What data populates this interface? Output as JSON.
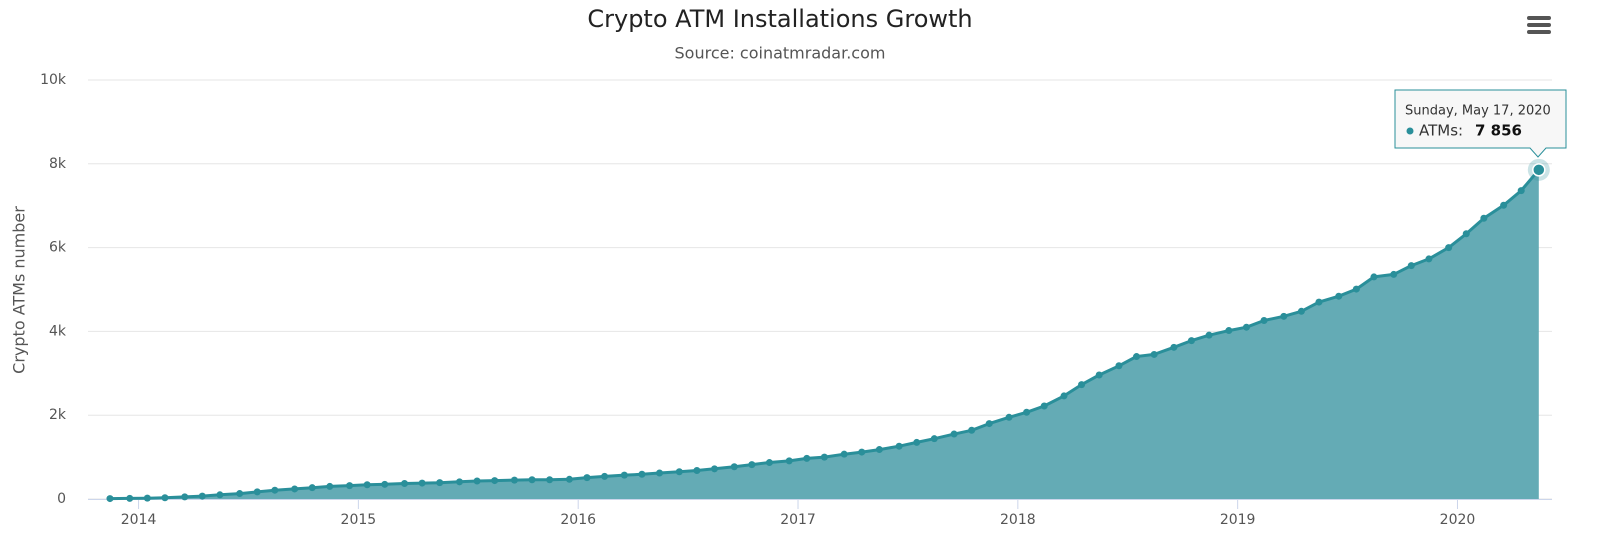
{
  "chart_data": {
    "type": "area",
    "title": "Crypto ATM Installations Growth",
    "subtitle": "Source: coinatmradar.com",
    "y_axis_title": "Crypto ATMs number",
    "color": "#2a8f9a",
    "fill": "#64abb5",
    "grid": true,
    "x": [
      2013.87,
      2013.96,
      2014.04,
      2014.12,
      2014.21,
      2014.29,
      2014.37,
      2014.46,
      2014.54,
      2014.62,
      2014.71,
      2014.79,
      2014.87,
      2014.96,
      2015.04,
      2015.12,
      2015.21,
      2015.29,
      2015.37,
      2015.46,
      2015.54,
      2015.62,
      2015.71,
      2015.79,
      2015.87,
      2015.96,
      2016.04,
      2016.12,
      2016.21,
      2016.29,
      2016.37,
      2016.46,
      2016.54,
      2016.62,
      2016.71,
      2016.79,
      2016.87,
      2016.96,
      2017.04,
      2017.12,
      2017.21,
      2017.29,
      2017.37,
      2017.46,
      2017.54,
      2017.62,
      2017.71,
      2017.79,
      2017.87,
      2017.96,
      2018.04,
      2018.12,
      2018.21,
      2018.29,
      2018.37,
      2018.46,
      2018.54,
      2018.62,
      2018.71,
      2018.79,
      2018.87,
      2018.96,
      2019.04,
      2019.12,
      2019.21,
      2019.29,
      2019.37,
      2019.46,
      2019.54,
      2019.62,
      2019.71,
      2019.79,
      2019.87,
      2019.96,
      2020.04,
      2020.12,
      2020.21,
      2020.29,
      2020.37
    ],
    "values": [
      10,
      15,
      20,
      30,
      50,
      70,
      100,
      130,
      170,
      210,
      240,
      270,
      300,
      320,
      340,
      350,
      370,
      380,
      390,
      410,
      430,
      440,
      450,
      460,
      460,
      470,
      510,
      540,
      570,
      590,
      620,
      650,
      680,
      720,
      770,
      820,
      870,
      910,
      970,
      1000,
      1070,
      1120,
      1180,
      1260,
      1350,
      1440,
      1550,
      1640,
      1800,
      1950,
      2070,
      2220,
      2460,
      2730,
      2960,
      3180,
      3400,
      3450,
      3620,
      3780,
      3910,
      4020,
      4100,
      4260,
      4360,
      4480,
      4700,
      4840,
      5010,
      5300,
      5360,
      5570,
      5730,
      6000,
      6330,
      6700,
      7010,
      7360,
      7856
    ],
    "xlim": [
      2013.77,
      2020.43
    ],
    "xticks": [
      2014,
      2015,
      2016,
      2017,
      2018,
      2019,
      2020
    ],
    "ylim": [
      0,
      10000
    ],
    "yticks": [
      0,
      {
        "value": 2000,
        "label": "2k"
      },
      {
        "value": 4000,
        "label": "4k"
      },
      {
        "value": 6000,
        "label": "6k"
      },
      {
        "value": 8000,
        "label": "8k"
      },
      {
        "value": 10000,
        "label": "10k"
      }
    ],
    "tooltip": {
      "title": "Sunday, May 17, 2020",
      "label": "ATMs:",
      "value_label": "7 856"
    }
  }
}
